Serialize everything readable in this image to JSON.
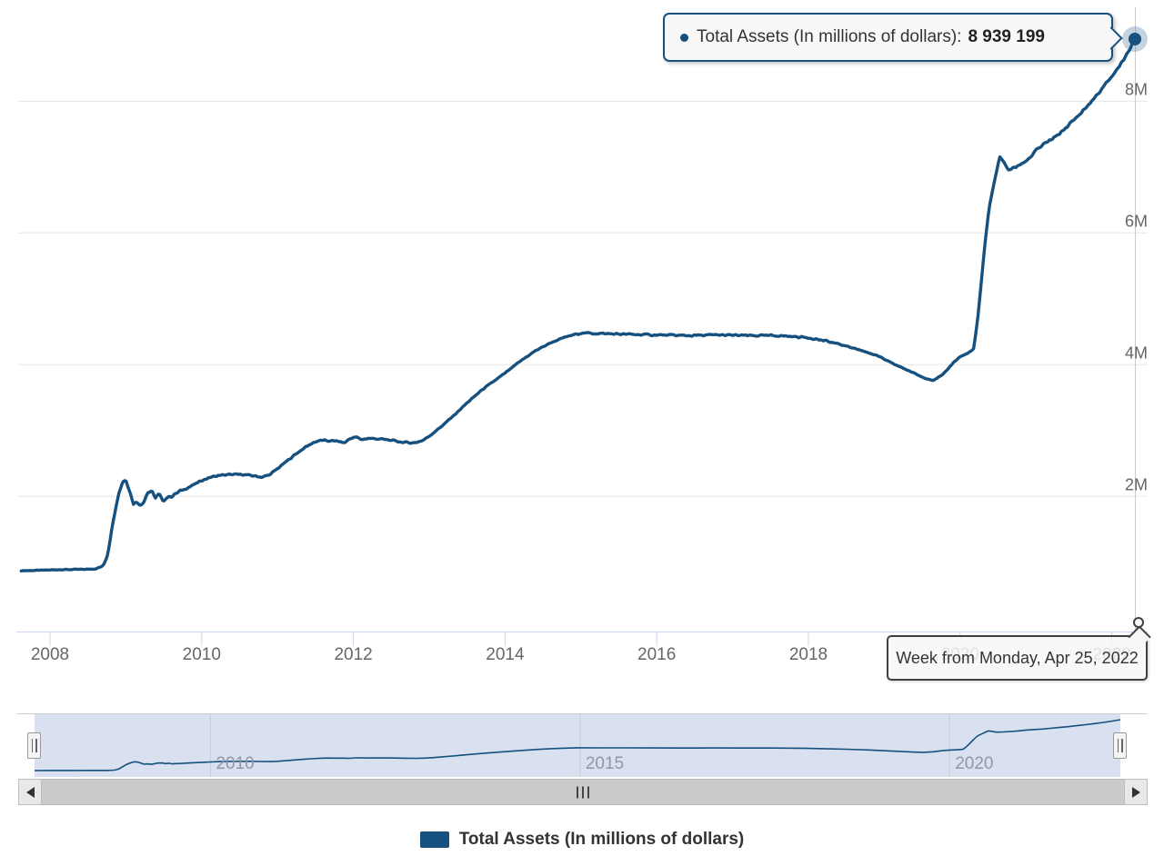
{
  "tooltip": {
    "label": "Total Assets (In millions of dollars):",
    "value": "8 939 199"
  },
  "x_axis_tooltip": {
    "text": "Week from Monday, Apr 25, 2022"
  },
  "legend": {
    "label": "Total Assets (In millions of dollars)"
  },
  "colors": {
    "series": "#15507f",
    "marker_halo": "rgba(21,80,127,0.25)",
    "grid": "#e6e6e6",
    "axis_line": "#ccd6eb",
    "axis_text": "#666666",
    "crosshair": "#cccccc",
    "navigator_mask": "rgba(102,133,194,0.25)",
    "navigator_outline": "#cccccc",
    "navigator_grid": "#c9cdd6"
  },
  "chart_data": {
    "type": "line",
    "title": "",
    "xlabel": "",
    "ylabel": "",
    "x_axis_type": "datetime (weekly)",
    "ylim": [
      0,
      9400000
    ],
    "grid": "horizontal",
    "legend_position": "bottom",
    "xticks": [
      2008,
      2010,
      2012,
      2014,
      2016,
      2018,
      2020,
      2022
    ],
    "yticks": [
      {
        "label": "2M",
        "value": 2000000
      },
      {
        "label": "4M",
        "value": 4000000
      },
      {
        "label": "6M",
        "value": 6000000
      },
      {
        "label": "8M",
        "value": 8000000
      }
    ],
    "navigator_xticks": [
      2010,
      2015,
      2020
    ],
    "selected_point": {
      "x_label": "Week from Monday, Apr 25, 2022",
      "value": 8939199
    },
    "series": [
      {
        "name": "Total Assets (In millions of dollars)",
        "points": [
          [
            2007.62,
            870000
          ],
          [
            2007.8,
            873000
          ],
          [
            2008.0,
            880000
          ],
          [
            2008.15,
            885000
          ],
          [
            2008.3,
            888000
          ],
          [
            2008.45,
            890000
          ],
          [
            2008.6,
            898000
          ],
          [
            2008.7,
            940000
          ],
          [
            2008.76,
            1120000
          ],
          [
            2008.81,
            1470000
          ],
          [
            2008.86,
            1810000
          ],
          [
            2008.91,
            2060000
          ],
          [
            2008.96,
            2230000
          ],
          [
            2009.0,
            2250000
          ],
          [
            2009.05,
            2090000
          ],
          [
            2009.1,
            1880000
          ],
          [
            2009.14,
            1930000
          ],
          [
            2009.18,
            1860000
          ],
          [
            2009.23,
            1910000
          ],
          [
            2009.29,
            2060000
          ],
          [
            2009.34,
            2070000
          ],
          [
            2009.39,
            1980000
          ],
          [
            2009.44,
            2030000
          ],
          [
            2009.48,
            1930000
          ],
          [
            2009.54,
            1980000
          ],
          [
            2009.62,
            2010000
          ],
          [
            2009.72,
            2080000
          ],
          [
            2009.82,
            2130000
          ],
          [
            2009.92,
            2190000
          ],
          [
            2010.0,
            2240000
          ],
          [
            2010.12,
            2290000
          ],
          [
            2010.25,
            2320000
          ],
          [
            2010.4,
            2330000
          ],
          [
            2010.55,
            2330000
          ],
          [
            2010.68,
            2310000
          ],
          [
            2010.8,
            2290000
          ],
          [
            2010.9,
            2330000
          ],
          [
            2011.0,
            2420000
          ],
          [
            2011.12,
            2530000
          ],
          [
            2011.24,
            2640000
          ],
          [
            2011.36,
            2740000
          ],
          [
            2011.48,
            2820000
          ],
          [
            2011.58,
            2850000
          ],
          [
            2011.68,
            2840000
          ],
          [
            2011.78,
            2840000
          ],
          [
            2011.88,
            2810000
          ],
          [
            2011.96,
            2880000
          ],
          [
            2012.04,
            2900000
          ],
          [
            2012.1,
            2860000
          ],
          [
            2012.2,
            2880000
          ],
          [
            2012.35,
            2870000
          ],
          [
            2012.5,
            2850000
          ],
          [
            2012.65,
            2820000
          ],
          [
            2012.8,
            2810000
          ],
          [
            2012.92,
            2850000
          ],
          [
            2013.02,
            2930000
          ],
          [
            2013.15,
            3050000
          ],
          [
            2013.3,
            3200000
          ],
          [
            2013.5,
            3420000
          ],
          [
            2013.7,
            3620000
          ],
          [
            2013.88,
            3770000
          ],
          [
            2014.0,
            3870000
          ],
          [
            2014.2,
            4050000
          ],
          [
            2014.4,
            4210000
          ],
          [
            2014.6,
            4330000
          ],
          [
            2014.8,
            4420000
          ],
          [
            2015.0,
            4480000
          ],
          [
            2015.3,
            4470000
          ],
          [
            2015.6,
            4460000
          ],
          [
            2016.0,
            4450000
          ],
          [
            2016.4,
            4440000
          ],
          [
            2016.8,
            4450000
          ],
          [
            2017.2,
            4440000
          ],
          [
            2017.6,
            4440000
          ],
          [
            2018.0,
            4410000
          ],
          [
            2018.3,
            4340000
          ],
          [
            2018.6,
            4250000
          ],
          [
            2018.9,
            4140000
          ],
          [
            2019.1,
            4020000
          ],
          [
            2019.3,
            3920000
          ],
          [
            2019.5,
            3810000
          ],
          [
            2019.65,
            3760000
          ],
          [
            2019.78,
            3850000
          ],
          [
            2019.9,
            4020000
          ],
          [
            2020.0,
            4120000
          ],
          [
            2020.1,
            4170000
          ],
          [
            2020.18,
            4240000
          ],
          [
            2020.23,
            4670000
          ],
          [
            2020.28,
            5250000
          ],
          [
            2020.33,
            5860000
          ],
          [
            2020.38,
            6370000
          ],
          [
            2020.43,
            6660000
          ],
          [
            2020.48,
            6930000
          ],
          [
            2020.52,
            7160000
          ],
          [
            2020.57,
            7090000
          ],
          [
            2020.63,
            6960000
          ],
          [
            2020.72,
            6990000
          ],
          [
            2020.82,
            7060000
          ],
          [
            2020.92,
            7140000
          ],
          [
            2021.0,
            7250000
          ],
          [
            2021.12,
            7360000
          ],
          [
            2021.24,
            7440000
          ],
          [
            2021.36,
            7560000
          ],
          [
            2021.48,
            7690000
          ],
          [
            2021.6,
            7830000
          ],
          [
            2021.72,
            7980000
          ],
          [
            2021.84,
            8140000
          ],
          [
            2021.96,
            8320000
          ],
          [
            2022.08,
            8500000
          ],
          [
            2022.2,
            8720000
          ],
          [
            2022.31,
            8939199
          ]
        ]
      }
    ]
  }
}
